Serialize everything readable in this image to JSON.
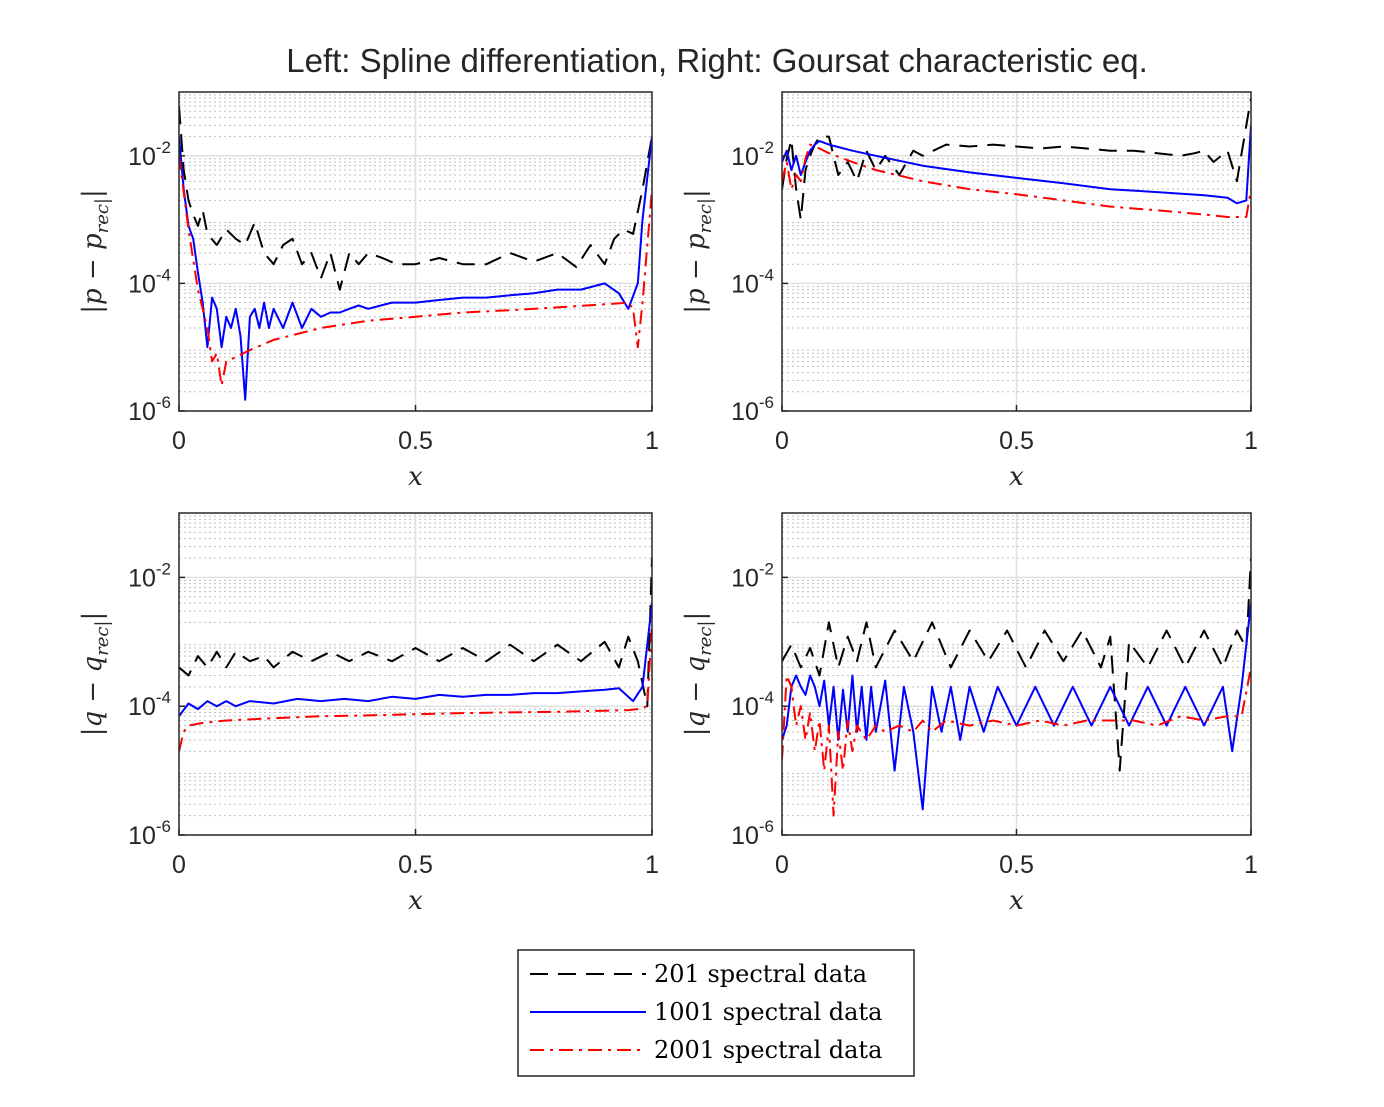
{
  "figure": {
    "title": "Left: Spline differentiation, Right: Goursat characteristic eq."
  },
  "colors": {
    "s201": "#000000",
    "s1001": "#0000ff",
    "s2001": "#ff0000",
    "grid": "#bfbfbf",
    "axis": "#262626"
  },
  "legend": {
    "position": "bottom-center",
    "entries": [
      {
        "label": "201 spectral data",
        "color": "#000000",
        "style": "dashed"
      },
      {
        "label": "1001 spectral data",
        "color": "#0000ff",
        "style": "solid"
      },
      {
        "label": "2001 spectral data",
        "color": "#ff0000",
        "style": "dashdot"
      }
    ]
  },
  "chart_data": [
    {
      "type": "line",
      "panel": "top-left",
      "xlabel": "x",
      "ylabel": "|p − p_rec|",
      "xlim": [
        0,
        1
      ],
      "ylim": [
        1e-06,
        0.1
      ],
      "yscale": "log",
      "grid": true,
      "xticks": [
        "0",
        "0.5",
        "1"
      ],
      "yticks": [
        "10^-6",
        "10^-4",
        "10^-2"
      ],
      "series": [
        {
          "name": "201 spectral data",
          "x": [
            0,
            0.01,
            0.02,
            0.03,
            0.04,
            0.05,
            0.06,
            0.08,
            0.1,
            0.12,
            0.14,
            0.16,
            0.18,
            0.2,
            0.22,
            0.24,
            0.26,
            0.28,
            0.3,
            0.32,
            0.34,
            0.36,
            0.38,
            0.4,
            0.43,
            0.46,
            0.5,
            0.55,
            0.6,
            0.65,
            0.7,
            0.75,
            0.8,
            0.84,
            0.87,
            0.9,
            0.92,
            0.94,
            0.96,
            0.98,
            1.0
          ],
          "y": [
            0.06,
            0.006,
            0.002,
            0.0012,
            0.0008,
            0.0014,
            0.0006,
            0.0004,
            0.0007,
            0.0005,
            0.0004,
            0.0009,
            0.0003,
            0.0002,
            0.0004,
            0.0005,
            0.0002,
            0.0003,
            0.00012,
            0.0003,
            8e-05,
            0.0003,
            0.0002,
            0.0003,
            0.00025,
            0.0002,
            0.0002,
            0.00025,
            0.0002,
            0.0002,
            0.0003,
            0.00022,
            0.0003,
            0.00018,
            0.0004,
            0.0002,
            0.0005,
            0.0007,
            0.0006,
            0.003,
            0.02
          ]
        },
        {
          "name": "1001 spectral data",
          "x": [
            0,
            0.01,
            0.02,
            0.03,
            0.04,
            0.05,
            0.06,
            0.07,
            0.08,
            0.09,
            0.1,
            0.11,
            0.12,
            0.13,
            0.14,
            0.15,
            0.16,
            0.17,
            0.18,
            0.19,
            0.2,
            0.22,
            0.24,
            0.26,
            0.28,
            0.3,
            0.32,
            0.34,
            0.36,
            0.38,
            0.4,
            0.45,
            0.5,
            0.55,
            0.6,
            0.65,
            0.7,
            0.75,
            0.8,
            0.85,
            0.9,
            0.93,
            0.95,
            0.97,
            0.98,
            1.0
          ],
          "y": [
            0.02,
            0.003,
            0.0008,
            0.0005,
            0.00015,
            5e-05,
            1e-05,
            6e-05,
            4e-05,
            1e-05,
            3e-05,
            2e-05,
            4e-05,
            1.5e-05,
            1.5e-06,
            3e-05,
            4e-05,
            2e-05,
            5e-05,
            2e-05,
            4e-05,
            2e-05,
            5e-05,
            2e-05,
            4e-05,
            3e-05,
            3.5e-05,
            3.5e-05,
            4e-05,
            4.5e-05,
            4e-05,
            5e-05,
            5e-05,
            5.5e-05,
            6e-05,
            6e-05,
            6.5e-05,
            7e-05,
            8e-05,
            8e-05,
            0.0001,
            7e-05,
            4e-05,
            0.0001,
            0.001,
            0.02
          ]
        },
        {
          "name": "2001 spectral data",
          "x": [
            0,
            0.02,
            0.04,
            0.06,
            0.07,
            0.08,
            0.09,
            0.1,
            0.12,
            0.15,
            0.2,
            0.3,
            0.4,
            0.5,
            0.6,
            0.7,
            0.8,
            0.9,
            0.95,
            0.96,
            0.97,
            0.98,
            1.0
          ],
          "y": [
            0.01,
            0.0007,
            8e-05,
            2e-05,
            6e-06,
            8e-06,
            2.5e-06,
            6e-06,
            7e-06,
            9e-06,
            1.3e-05,
            2e-05,
            2.6e-05,
            3e-05,
            3.5e-05,
            3.8e-05,
            4.2e-05,
            4.7e-05,
            5e-05,
            4e-05,
            1e-05,
            5e-05,
            0.003
          ]
        }
      ]
    },
    {
      "type": "line",
      "panel": "top-right",
      "xlabel": "x",
      "ylabel": "|p − p_rec|",
      "xlim": [
        0,
        1
      ],
      "ylim": [
        1e-06,
        0.1
      ],
      "yscale": "log",
      "grid": true,
      "xticks": [
        "0",
        "0.5",
        "1"
      ],
      "yticks": [
        "10^-6",
        "10^-4",
        "10^-2"
      ],
      "series": [
        {
          "name": "201 spectral data",
          "x": [
            0,
            0.01,
            0.02,
            0.03,
            0.04,
            0.05,
            0.06,
            0.07,
            0.08,
            0.1,
            0.12,
            0.14,
            0.16,
            0.18,
            0.2,
            0.22,
            0.25,
            0.28,
            0.3,
            0.35,
            0.4,
            0.45,
            0.5,
            0.55,
            0.6,
            0.65,
            0.7,
            0.75,
            0.8,
            0.85,
            0.88,
            0.9,
            0.92,
            0.95,
            0.97,
            0.99,
            1.0
          ],
          "y": [
            0.003,
            0.009,
            0.018,
            0.003,
            0.001,
            0.006,
            0.01,
            0.015,
            0.02,
            0.02,
            0.005,
            0.008,
            0.004,
            0.012,
            0.006,
            0.01,
            0.005,
            0.012,
            0.01,
            0.015,
            0.014,
            0.015,
            0.014,
            0.013,
            0.014,
            0.013,
            0.012,
            0.012,
            0.011,
            0.01,
            0.011,
            0.012,
            0.008,
            0.012,
            0.004,
            0.03,
            0.08
          ]
        },
        {
          "name": "1001 spectral data",
          "x": [
            0,
            0.01,
            0.02,
            0.03,
            0.04,
            0.05,
            0.06,
            0.07,
            0.08,
            0.1,
            0.15,
            0.2,
            0.3,
            0.4,
            0.5,
            0.6,
            0.7,
            0.8,
            0.9,
            0.95,
            0.97,
            0.99,
            1.0
          ],
          "y": [
            0.008,
            0.012,
            0.006,
            0.01,
            0.005,
            0.008,
            0.012,
            0.015,
            0.017,
            0.015,
            0.012,
            0.01,
            0.007,
            0.0055,
            0.0045,
            0.0037,
            0.003,
            0.0027,
            0.0024,
            0.0022,
            0.0018,
            0.002,
            0.03
          ]
        },
        {
          "name": "2001 spectral data",
          "x": [
            0,
            0.01,
            0.02,
            0.03,
            0.04,
            0.05,
            0.06,
            0.08,
            0.1,
            0.15,
            0.2,
            0.3,
            0.4,
            0.5,
            0.6,
            0.7,
            0.8,
            0.9,
            0.95,
            0.99,
            1.0
          ],
          "y": [
            0.004,
            0.008,
            0.003,
            0.005,
            0.004,
            0.009,
            0.015,
            0.013,
            0.011,
            0.008,
            0.006,
            0.004,
            0.003,
            0.0025,
            0.002,
            0.0016,
            0.0014,
            0.0012,
            0.0011,
            0.0011,
            0.003
          ]
        }
      ]
    },
    {
      "type": "line",
      "panel": "bottom-left",
      "xlabel": "x",
      "ylabel": "|q − q_rec|",
      "xlim": [
        0,
        1
      ],
      "ylim": [
        1e-06,
        0.1
      ],
      "yscale": "log",
      "grid": true,
      "xticks": [
        "0",
        "0.5",
        "1"
      ],
      "yticks": [
        "10^-6",
        "10^-4",
        "10^-2"
      ],
      "series": [
        {
          "name": "201 spectral data",
          "x": [
            0,
            0.02,
            0.04,
            0.06,
            0.08,
            0.1,
            0.12,
            0.15,
            0.18,
            0.2,
            0.24,
            0.28,
            0.32,
            0.36,
            0.4,
            0.45,
            0.5,
            0.55,
            0.6,
            0.65,
            0.7,
            0.75,
            0.8,
            0.85,
            0.9,
            0.93,
            0.95,
            0.97,
            0.99,
            1.0
          ],
          "y": [
            0.0004,
            0.0003,
            0.0006,
            0.0004,
            0.0007,
            0.0004,
            0.0007,
            0.0005,
            0.0006,
            0.0004,
            0.0007,
            0.0005,
            0.0007,
            0.0005,
            0.0007,
            0.0005,
            0.0008,
            0.0005,
            0.0008,
            0.0005,
            0.0009,
            0.0005,
            0.0009,
            0.0005,
            0.001,
            0.0004,
            0.0012,
            0.0005,
            0.0001,
            0.02
          ]
        },
        {
          "name": "1001 spectral data",
          "x": [
            0,
            0.02,
            0.04,
            0.06,
            0.08,
            0.1,
            0.12,
            0.15,
            0.2,
            0.25,
            0.3,
            0.35,
            0.4,
            0.45,
            0.5,
            0.55,
            0.6,
            0.65,
            0.7,
            0.75,
            0.8,
            0.85,
            0.9,
            0.93,
            0.96,
            0.98,
            1.0
          ],
          "y": [
            7e-05,
            0.00011,
            9e-05,
            0.00012,
            0.0001,
            0.00012,
            0.0001,
            0.00012,
            0.00011,
            0.00013,
            0.00012,
            0.00013,
            0.00012,
            0.00014,
            0.00013,
            0.00015,
            0.00014,
            0.00015,
            0.00015,
            0.00016,
            0.00016,
            0.00017,
            0.00018,
            0.00019,
            0.00012,
            0.0002,
            0.004
          ]
        },
        {
          "name": "2001 spectral data",
          "x": [
            0,
            0.01,
            0.02,
            0.05,
            0.1,
            0.2,
            0.3,
            0.4,
            0.5,
            0.6,
            0.7,
            0.8,
            0.9,
            0.95,
            0.97,
            0.99,
            1.0
          ],
          "y": [
            2e-05,
            4e-05,
            5e-05,
            5.5e-05,
            6e-05,
            6.5e-05,
            7e-05,
            7.2e-05,
            7.5e-05,
            7.8e-05,
            8e-05,
            8.2e-05,
            8.5e-05,
            8.7e-05,
            9e-05,
            0.0001,
            0.002
          ]
        }
      ]
    },
    {
      "type": "line",
      "panel": "bottom-right",
      "xlabel": "x",
      "ylabel": "|q − q_rec|",
      "xlim": [
        0,
        1
      ],
      "ylim": [
        1e-06,
        0.1
      ],
      "yscale": "log",
      "grid": true,
      "xticks": [
        "0",
        "0.5",
        "1"
      ],
      "yticks": [
        "10^-6",
        "10^-4",
        "10^-2"
      ],
      "series": [
        {
          "name": "201 spectral data",
          "x": [
            0,
            0.02,
            0.04,
            0.06,
            0.08,
            0.1,
            0.12,
            0.14,
            0.16,
            0.18,
            0.2,
            0.24,
            0.28,
            0.32,
            0.36,
            0.4,
            0.44,
            0.48,
            0.52,
            0.56,
            0.6,
            0.64,
            0.68,
            0.7,
            0.72,
            0.74,
            0.78,
            0.82,
            0.86,
            0.9,
            0.94,
            0.97,
            0.99,
            1.0
          ],
          "y": [
            0.0005,
            0.0009,
            0.0004,
            0.0008,
            0.0003,
            0.002,
            0.0004,
            0.0012,
            0.0005,
            0.002,
            0.0004,
            0.0015,
            0.0005,
            0.002,
            0.0004,
            0.0015,
            0.0005,
            0.0015,
            0.0004,
            0.0015,
            0.0005,
            0.0015,
            0.0004,
            0.0012,
            1e-05,
            0.001,
            0.0004,
            0.0015,
            0.0004,
            0.0015,
            0.0004,
            0.0015,
            0.0008,
            0.02
          ]
        },
        {
          "name": "1001 spectral data",
          "x": [
            0,
            0.01,
            0.02,
            0.03,
            0.04,
            0.05,
            0.06,
            0.07,
            0.08,
            0.09,
            0.1,
            0.11,
            0.12,
            0.13,
            0.14,
            0.15,
            0.16,
            0.17,
            0.18,
            0.19,
            0.2,
            0.22,
            0.24,
            0.26,
            0.28,
            0.3,
            0.32,
            0.34,
            0.36,
            0.38,
            0.4,
            0.43,
            0.46,
            0.5,
            0.54,
            0.58,
            0.62,
            0.66,
            0.7,
            0.74,
            0.78,
            0.82,
            0.86,
            0.9,
            0.94,
            0.96,
            0.98,
            1.0
          ],
          "y": [
            3e-05,
            5e-05,
            0.0002,
            0.0003,
            0.0002,
            0.00015,
            0.0003,
            0.0002,
            0.0001,
            0.00025,
            5e-05,
            0.0002,
            3e-05,
            0.00018,
            4e-05,
            0.0003,
            4e-05,
            0.0002,
            3e-05,
            0.0002,
            4e-05,
            0.00025,
            1e-05,
            0.0002,
            4e-05,
            2.5e-06,
            0.0002,
            4e-05,
            0.0002,
            3e-05,
            0.0002,
            4e-05,
            0.0002,
            5e-05,
            0.0002,
            5e-05,
            0.0002,
            5e-05,
            0.0002,
            5e-05,
            0.0002,
            5e-05,
            0.0002,
            5e-05,
            0.0002,
            2e-05,
            0.0002,
            0.004
          ]
        },
        {
          "name": "2001 spectral data",
          "x": [
            0,
            0.01,
            0.02,
            0.03,
            0.04,
            0.05,
            0.06,
            0.07,
            0.08,
            0.09,
            0.1,
            0.11,
            0.12,
            0.13,
            0.14,
            0.15,
            0.16,
            0.18,
            0.2,
            0.22,
            0.25,
            0.28,
            0.3,
            0.32,
            0.35,
            0.4,
            0.45,
            0.5,
            0.55,
            0.6,
            0.65,
            0.7,
            0.75,
            0.8,
            0.85,
            0.9,
            0.95,
            0.98,
            1.0
          ],
          "y": [
            1.5e-05,
            0.0003,
            0.0002,
            5e-05,
            0.0001,
            3e-05,
            8e-05,
            2e-05,
            6e-05,
            1e-05,
            5e-05,
            2e-06,
            4e-05,
            1e-05,
            6e-05,
            2e-05,
            5e-05,
            3e-05,
            5e-05,
            4e-05,
            5e-05,
            4e-05,
            6e-05,
            4e-05,
            6e-05,
            5e-05,
            6e-05,
            5e-05,
            6e-05,
            5e-05,
            6e-05,
            6e-05,
            6e-05,
            5e-05,
            7e-05,
            6e-05,
            7e-05,
            7e-05,
            0.0004
          ]
        }
      ]
    }
  ]
}
